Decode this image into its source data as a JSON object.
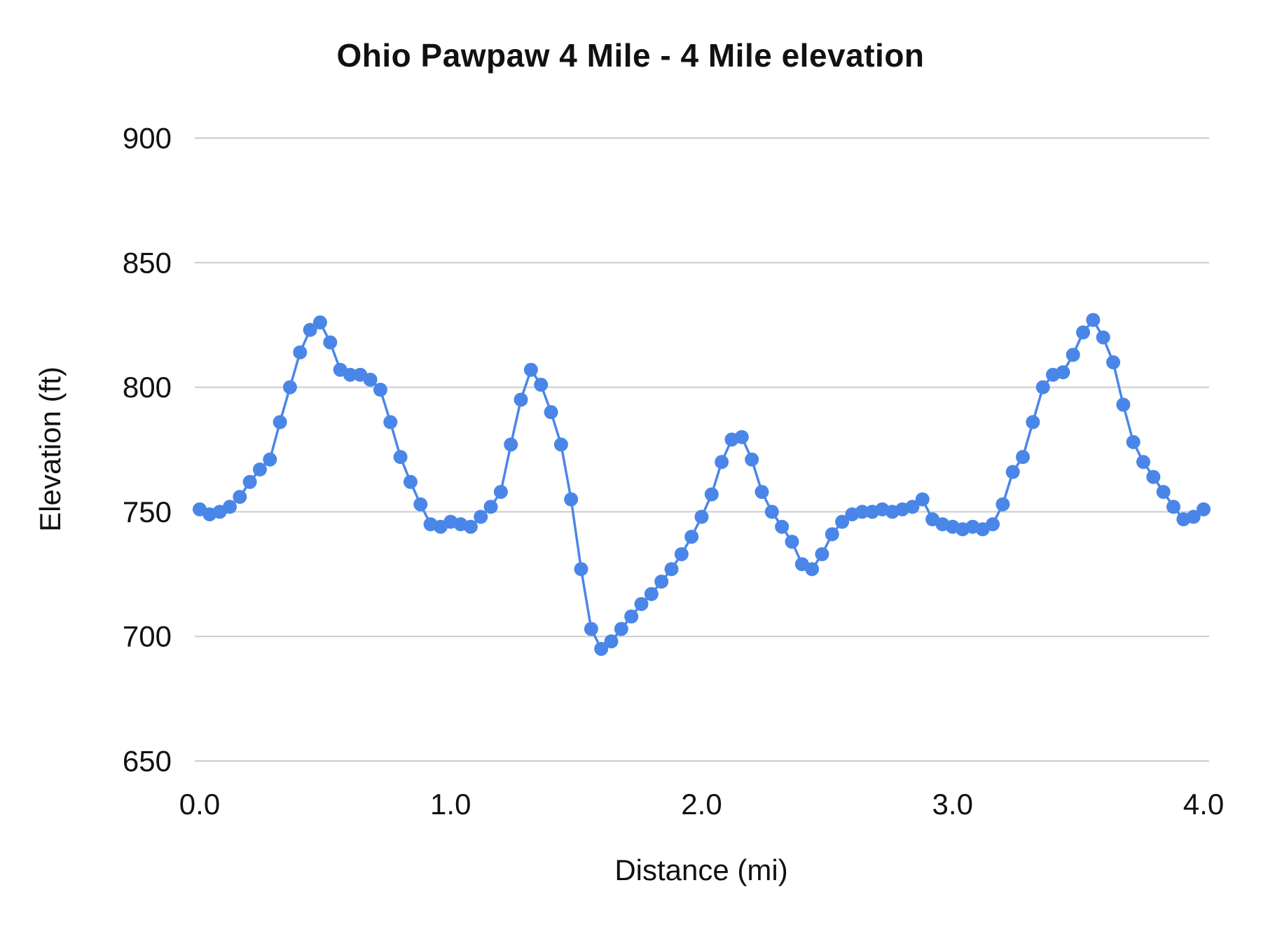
{
  "title": "Ohio Pawpaw 4 Mile - 4 Mile elevation",
  "chart_data": {
    "type": "line",
    "title": "Ohio Pawpaw 4 Mile - 4 Mile elevation",
    "xlabel": "Distance (mi)",
    "ylabel": "Elevation (ft)",
    "xlim": [
      0.0,
      4.0
    ],
    "ylim": [
      650,
      900
    ],
    "x_ticks": [
      0.0,
      1.0,
      2.0,
      3.0,
      4.0
    ],
    "x_tick_labels": [
      "0.0",
      "1.0",
      "2.0",
      "3.0",
      "4.0"
    ],
    "y_ticks": [
      650,
      700,
      750,
      800,
      850,
      900
    ],
    "y_tick_labels": [
      "650",
      "700",
      "750",
      "800",
      "850",
      "900"
    ],
    "grid": "horizontal",
    "legend": "none",
    "colors": {
      "grid": "#cccccc",
      "text": "#111111"
    },
    "series": [
      {
        "name": "Elevation",
        "color": "#4a86e8",
        "marker": "circle",
        "x": [
          0.0,
          0.04,
          0.08,
          0.12,
          0.16,
          0.2,
          0.24,
          0.28,
          0.32,
          0.36,
          0.4,
          0.44,
          0.48,
          0.52,
          0.56,
          0.6,
          0.64,
          0.68,
          0.72,
          0.76,
          0.8,
          0.84,
          0.88,
          0.92,
          0.96,
          1.0,
          1.04,
          1.08,
          1.12,
          1.16,
          1.2,
          1.24,
          1.28,
          1.32,
          1.36,
          1.4,
          1.44,
          1.48,
          1.52,
          1.56,
          1.6,
          1.64,
          1.68,
          1.72,
          1.76,
          1.8,
          1.84,
          1.88,
          1.92,
          1.96,
          2.0,
          2.04,
          2.08,
          2.12,
          2.16,
          2.2,
          2.24,
          2.28,
          2.32,
          2.36,
          2.4,
          2.44,
          2.48,
          2.52,
          2.56,
          2.6,
          2.64,
          2.68,
          2.72,
          2.76,
          2.8,
          2.84,
          2.88,
          2.92,
          2.96,
          3.0,
          3.04,
          3.08,
          3.12,
          3.16,
          3.2,
          3.24,
          3.28,
          3.32,
          3.36,
          3.4,
          3.44,
          3.48,
          3.52,
          3.56,
          3.6,
          3.64,
          3.68,
          3.72,
          3.76,
          3.8,
          3.84,
          3.88,
          3.92,
          3.96,
          4.0
        ],
        "y": [
          751,
          749,
          750,
          752,
          756,
          762,
          767,
          771,
          786,
          800,
          814,
          823,
          826,
          818,
          807,
          805,
          805,
          803,
          799,
          786,
          772,
          762,
          753,
          745,
          744,
          746,
          745,
          744,
          748,
          752,
          758,
          777,
          795,
          807,
          801,
          790,
          777,
          755,
          727,
          703,
          695,
          698,
          703,
          708,
          713,
          717,
          722,
          727,
          733,
          740,
          748,
          757,
          770,
          779,
          780,
          771,
          758,
          750,
          744,
          738,
          729,
          727,
          733,
          741,
          746,
          749,
          750,
          750,
          751,
          750,
          751,
          752,
          755,
          747,
          745,
          744,
          743,
          744,
          743,
          745,
          753,
          766,
          772,
          786,
          800,
          805,
          806,
          813,
          822,
          827,
          820,
          810,
          793,
          778,
          770,
          764,
          758,
          752,
          747,
          748,
          751
        ]
      }
    ]
  }
}
